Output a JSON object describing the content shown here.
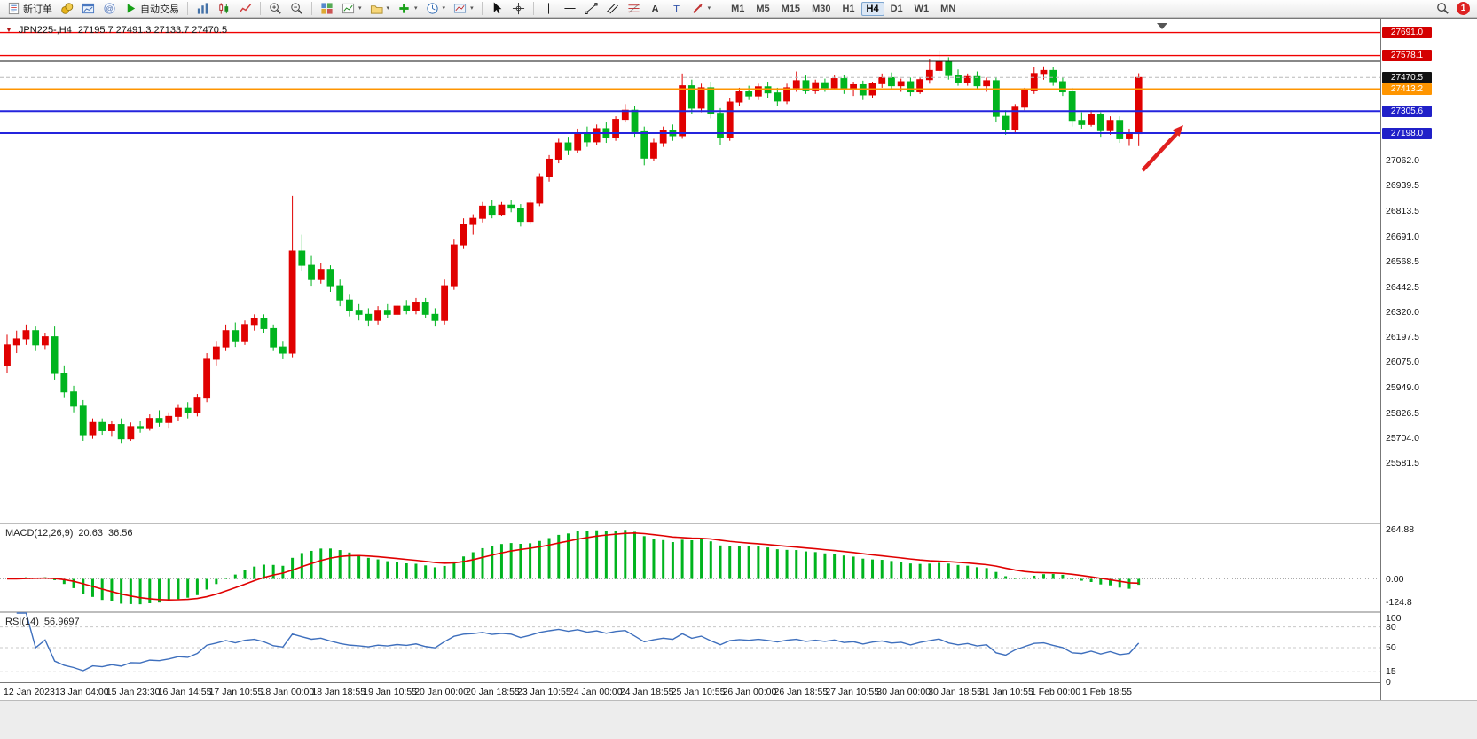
{
  "icons": {
    "caret": "▾",
    "chart_window_marker": "▼"
  },
  "toolbar": {
    "new_order_label": "新订单",
    "autotrading_label": "自动交易",
    "timeframes": [
      "M1",
      "M5",
      "M15",
      "M30",
      "H1",
      "H4",
      "D1",
      "W1",
      "MN"
    ],
    "active_timeframe": "H4",
    "notification_count": "1"
  },
  "chart_ui": {
    "title_symbol": "JPN225-,H4",
    "title_ohlc": "27195.7 27491.3 27133.7 27470.5",
    "arrow_color": "#e01f1f"
  },
  "chart_data": {
    "type": "candlestick",
    "symbol": "JPN225-",
    "period": "H4",
    "y_axis": {
      "top": 27750,
      "bottom": 25290
    },
    "y_ticks": [
      27062.0,
      26939.5,
      26813.5,
      26691.0,
      26568.5,
      26442.5,
      26320.0,
      26197.5,
      26075.0,
      25949.0,
      25826.5,
      25704.0,
      25581.5
    ],
    "x_labels": [
      "12 Jan 2023",
      "13 Jan 04:00",
      "15 Jan 23:30",
      "16 Jan 14:55",
      "17 Jan 10:55",
      "18 Jan 00:00",
      "18 Jan 18:55",
      "19 Jan 10:55",
      "20 Jan 00:00",
      "20 Jan 18:55",
      "23 Jan 10:55",
      "24 Jan 00:00",
      "24 Jan 18:55",
      "25 Jan 10:55",
      "26 Jan 00:00",
      "26 Jan 18:55",
      "27 Jan 10:55",
      "30 Jan 00:00",
      "30 Jan 18:55",
      "31 Jan 10:55",
      "1 Feb 00:00",
      "1 Feb 18:55"
    ],
    "hlines": [
      {
        "price": 27691.0,
        "label": "27691.0",
        "color": "#f00000",
        "box": "#d40000",
        "width": 1.4
      },
      {
        "price": 27578.1,
        "label": "27578.1",
        "color": "#f00000",
        "box": "#d40000",
        "width": 1.4
      },
      {
        "price": 27550.0,
        "label": null,
        "color": "#111111",
        "box": null,
        "width": 1
      },
      {
        "price": 27413.2,
        "label": "27413.2",
        "color": "#ff9500",
        "box": "#ff9500",
        "width": 2
      },
      {
        "price": 27305.6,
        "label": "27305.6",
        "color": "#2424dd",
        "box": "#2020c8",
        "width": 2
      },
      {
        "price": 27198.0,
        "label": "27198.0",
        "color": "#2424dd",
        "box": "#2020c8",
        "width": 2
      }
    ],
    "current_price": {
      "price": 27470.5,
      "label": "27470.5"
    },
    "colors": {
      "bull": "#e00000",
      "bear": "#00b41e",
      "macd_hist": "#00b41e",
      "macd_signal": "#e00000",
      "rsi_line": "#3e6fbd"
    },
    "candles": [
      [
        26060,
        26210,
        26020,
        26160
      ],
      [
        26160,
        26230,
        26120,
        26190
      ],
      [
        26190,
        26260,
        26160,
        26230
      ],
      [
        26230,
        26250,
        26130,
        26160
      ],
      [
        26160,
        26220,
        26140,
        26200
      ],
      [
        26200,
        26250,
        25990,
        26020
      ],
      [
        26020,
        26060,
        25900,
        25930
      ],
      [
        25930,
        25960,
        25830,
        25860
      ],
      [
        25860,
        25890,
        25690,
        25720
      ],
      [
        25720,
        25800,
        25700,
        25780
      ],
      [
        25780,
        25800,
        25720,
        25740
      ],
      [
        25740,
        25790,
        25710,
        25770
      ],
      [
        25770,
        25800,
        25680,
        25700
      ],
      [
        25700,
        25780,
        25690,
        25760
      ],
      [
        25760,
        25790,
        25730,
        25750
      ],
      [
        25750,
        25820,
        25740,
        25800
      ],
      [
        25800,
        25840,
        25760,
        25780
      ],
      [
        25780,
        25830,
        25750,
        25810
      ],
      [
        25810,
        25870,
        25790,
        25850
      ],
      [
        25850,
        25880,
        25800,
        25830
      ],
      [
        25830,
        25920,
        25810,
        25900
      ],
      [
        25900,
        26120,
        25880,
        26090
      ],
      [
        26090,
        26180,
        26060,
        26150
      ],
      [
        26150,
        26260,
        26130,
        26230
      ],
      [
        26230,
        26270,
        26150,
        26180
      ],
      [
        26180,
        26280,
        26160,
        26260
      ],
      [
        26260,
        26310,
        26230,
        26290
      ],
      [
        26290,
        26310,
        26220,
        26240
      ],
      [
        26240,
        26260,
        26130,
        26150
      ],
      [
        26150,
        26180,
        26090,
        26120
      ],
      [
        26120,
        26890,
        26100,
        26620
      ],
      [
        26620,
        26700,
        26520,
        26550
      ],
      [
        26550,
        26600,
        26450,
        26480
      ],
      [
        26480,
        26560,
        26460,
        26530
      ],
      [
        26530,
        26550,
        26420,
        26450
      ],
      [
        26450,
        26480,
        26350,
        26380
      ],
      [
        26380,
        26410,
        26300,
        26330
      ],
      [
        26330,
        26360,
        26280,
        26310
      ],
      [
        26310,
        26340,
        26250,
        26280
      ],
      [
        26280,
        26350,
        26260,
        26330
      ],
      [
        26330,
        26360,
        26290,
        26310
      ],
      [
        26310,
        26370,
        26290,
        26350
      ],
      [
        26350,
        26380,
        26310,
        26330
      ],
      [
        26330,
        26390,
        26310,
        26370
      ],
      [
        26370,
        26390,
        26290,
        26310
      ],
      [
        26310,
        26340,
        26250,
        26280
      ],
      [
        26280,
        26480,
        26260,
        26450
      ],
      [
        26450,
        26680,
        26430,
        26650
      ],
      [
        26650,
        26780,
        26630,
        26750
      ],
      [
        26750,
        26800,
        26700,
        26780
      ],
      [
        26780,
        26860,
        26760,
        26840
      ],
      [
        26840,
        26870,
        26780,
        26800
      ],
      [
        26800,
        26860,
        26790,
        26845
      ],
      [
        26845,
        26870,
        26810,
        26830
      ],
      [
        26830,
        26850,
        26740,
        26765
      ],
      [
        26765,
        26870,
        26750,
        26855
      ],
      [
        26855,
        27000,
        26840,
        26985
      ],
      [
        26985,
        27090,
        26960,
        27070
      ],
      [
        27070,
        27170,
        27050,
        27150
      ],
      [
        27150,
        27180,
        27090,
        27115
      ],
      [
        27115,
        27220,
        27100,
        27200
      ],
      [
        27200,
        27230,
        27130,
        27155
      ],
      [
        27155,
        27240,
        27140,
        27220
      ],
      [
        27220,
        27250,
        27150,
        27175
      ],
      [
        27175,
        27280,
        27160,
        27265
      ],
      [
        27265,
        27340,
        27250,
        27310
      ],
      [
        27310,
        27330,
        27180,
        27205
      ],
      [
        27205,
        27230,
        27040,
        27075
      ],
      [
        27075,
        27170,
        27060,
        27150
      ],
      [
        27150,
        27230,
        27130,
        27210
      ],
      [
        27210,
        27240,
        27160,
        27185
      ],
      [
        27185,
        27490,
        27170,
        27430
      ],
      [
        27430,
        27460,
        27290,
        27320
      ],
      [
        27320,
        27440,
        27300,
        27420
      ],
      [
        27420,
        27450,
        27270,
        27295
      ],
      [
        27295,
        27320,
        27140,
        27175
      ],
      [
        27175,
        27370,
        27160,
        27350
      ],
      [
        27350,
        27420,
        27330,
        27400
      ],
      [
        27400,
        27430,
        27360,
        27380
      ],
      [
        27380,
        27440,
        27360,
        27425
      ],
      [
        27425,
        27450,
        27370,
        27395
      ],
      [
        27395,
        27420,
        27330,
        27355
      ],
      [
        27355,
        27440,
        27340,
        27420
      ],
      [
        27420,
        27500,
        27400,
        27455
      ],
      [
        27455,
        27480,
        27390,
        27405
      ],
      [
        27405,
        27460,
        27390,
        27445
      ],
      [
        27445,
        27465,
        27400,
        27420
      ],
      [
        27420,
        27480,
        27410,
        27465
      ],
      [
        27465,
        27485,
        27390,
        27410
      ],
      [
        27410,
        27450,
        27380,
        27435
      ],
      [
        27435,
        27455,
        27360,
        27385
      ],
      [
        27385,
        27450,
        27370,
        27440
      ],
      [
        27440,
        27490,
        27420,
        27470
      ],
      [
        27470,
        27495,
        27410,
        27430
      ],
      [
        27430,
        27465,
        27400,
        27450
      ],
      [
        27450,
        27470,
        27380,
        27400
      ],
      [
        27400,
        27470,
        27390,
        27460
      ],
      [
        27460,
        27560,
        27440,
        27505
      ],
      [
        27505,
        27600,
        27490,
        27550
      ],
      [
        27550,
        27570,
        27460,
        27480
      ],
      [
        27480,
        27510,
        27430,
        27445
      ],
      [
        27445,
        27490,
        27430,
        27475
      ],
      [
        27475,
        27500,
        27410,
        27430
      ],
      [
        27430,
        27470,
        27400,
        27455
      ],
      [
        27455,
        27470,
        27250,
        27280
      ],
      [
        27280,
        27310,
        27190,
        27215
      ],
      [
        27215,
        27340,
        27200,
        27325
      ],
      [
        27325,
        27420,
        27310,
        27405
      ],
      [
        27405,
        27520,
        27390,
        27490
      ],
      [
        27490,
        27525,
        27460,
        27505
      ],
      [
        27505,
        27520,
        27430,
        27450
      ],
      [
        27450,
        27470,
        27380,
        27400
      ],
      [
        27400,
        27420,
        27230,
        27260
      ],
      [
        27260,
        27300,
        27220,
        27240
      ],
      [
        27240,
        27310,
        27230,
        27290
      ],
      [
        27290,
        27300,
        27180,
        27210
      ],
      [
        27210,
        27280,
        27190,
        27260
      ],
      [
        27260,
        27280,
        27150,
        27170
      ],
      [
        27170,
        27220,
        27135,
        27196
      ],
      [
        27195.7,
        27491.3,
        27133.7,
        27470.5
      ]
    ]
  },
  "macd": {
    "title": "MACD(12,26,9)",
    "value_main": "20.63",
    "value_signal": "36.56",
    "params": {
      "fast": 12,
      "slow": 26,
      "signal": 9
    },
    "scale_labels": [
      "264.88",
      "0.00",
      "-124.8"
    ],
    "scale_max": 264.88
  },
  "rsi": {
    "title": "RSI(14)",
    "value": "56.9697",
    "period": 14,
    "levels": [
      80,
      50,
      15
    ],
    "scale_labels": [
      100,
      80,
      50,
      15,
      0
    ]
  }
}
